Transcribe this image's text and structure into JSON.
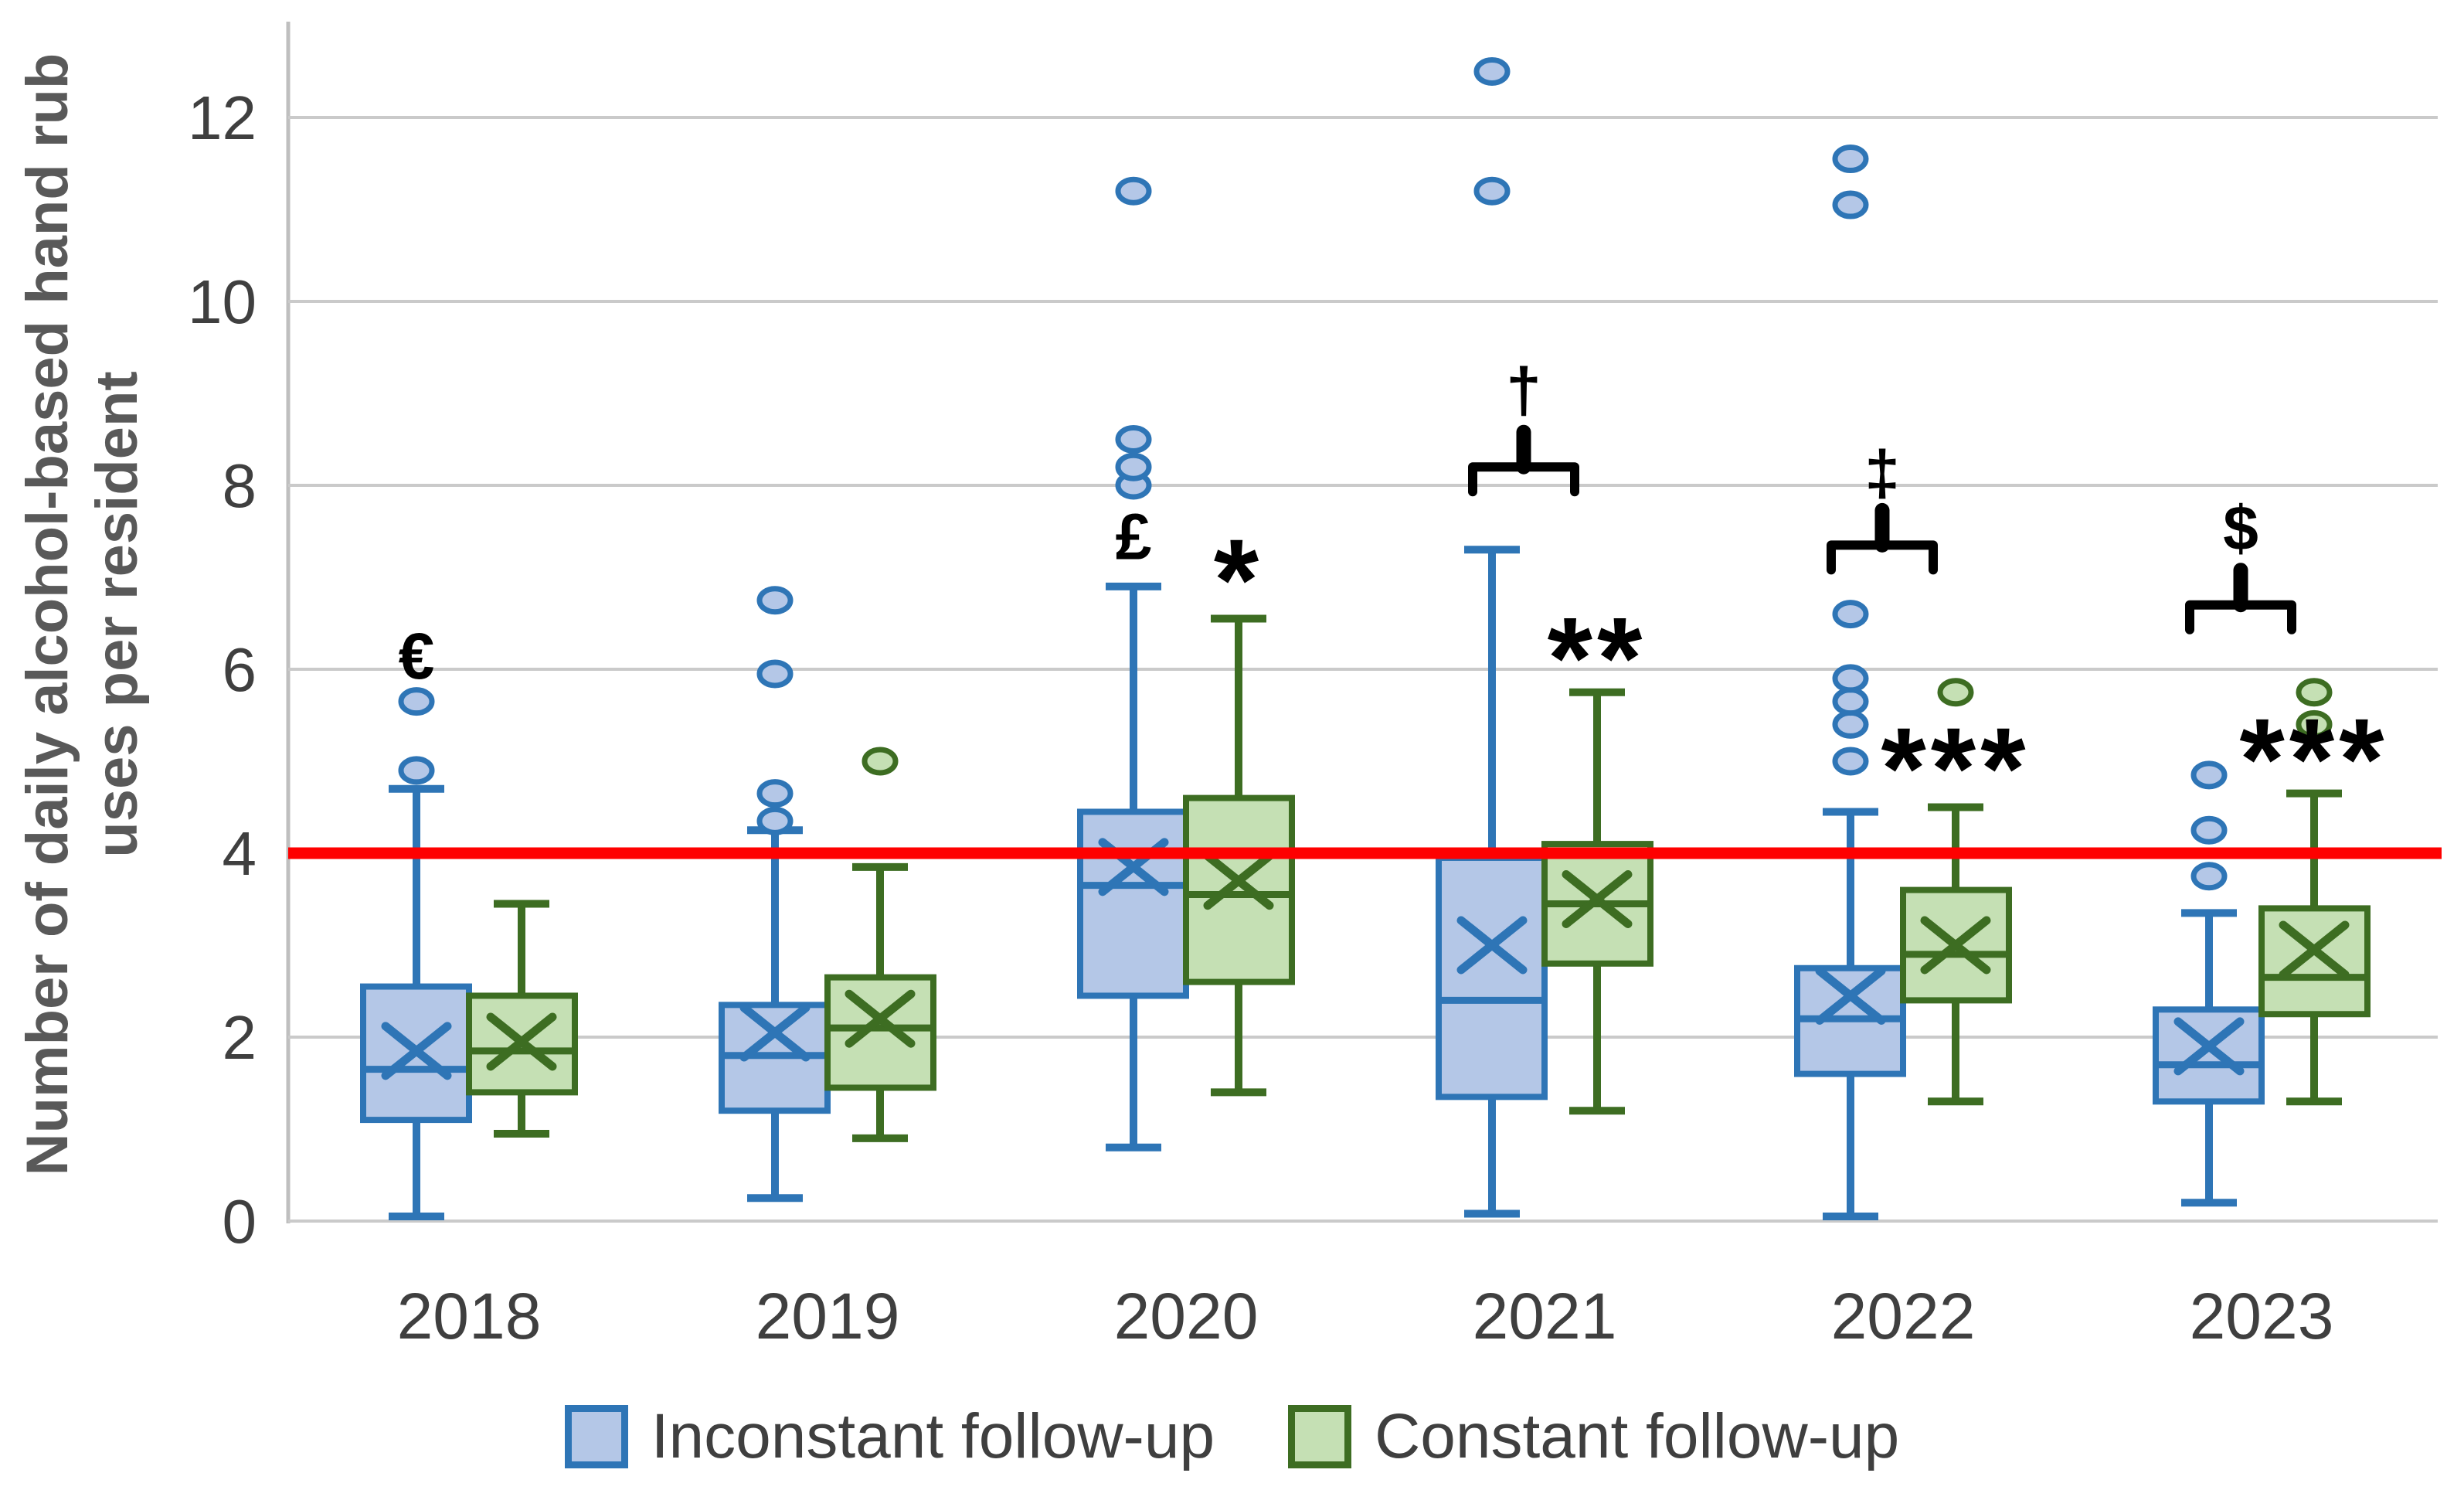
{
  "chart_data": {
    "type": "boxplot",
    "title": "",
    "ylabel_lines": [
      "Number of daily alcohol-based hand rub",
      "uses per resident"
    ],
    "xlabel": "",
    "y_axis": {
      "min": 0,
      "max": 13,
      "ticks": [
        0,
        2,
        4,
        6,
        8,
        10,
        12
      ],
      "grid": true
    },
    "reference_line": {
      "value": 4,
      "color": "#fe0000"
    },
    "categories": [
      "2018",
      "2019",
      "2020",
      "2021",
      "2022",
      "2023"
    ],
    "legend_position": "bottom",
    "style": {
      "grid_color": "#cacaca",
      "axis_color": "#bfbfbf",
      "tick_label_color": "#3f3f3f",
      "axis_title_color": "#595959",
      "annotation_color": "#000000"
    },
    "series": [
      {
        "name": "Inconstant follow-up",
        "fill": "#b4c7e7",
        "stroke": "#2e75b6",
        "boxes": [
          {
            "category": "2018",
            "whisker_low": 0.05,
            "q1": 1.1,
            "median": 1.65,
            "mean": 1.85,
            "q3": 2.55,
            "whisker_high": 4.7,
            "outliers": [
              4.9,
              5.65
            ],
            "annotation": "€",
            "annotation_y": 6.15
          },
          {
            "category": "2019",
            "whisker_low": 0.25,
            "q1": 1.2,
            "median": 1.8,
            "mean": 2.05,
            "q3": 2.35,
            "whisker_high": 4.25,
            "outliers": [
              4.35,
              4.65,
              5.95,
              6.75
            ],
            "annotation": null,
            "annotation_y": null
          },
          {
            "category": "2020",
            "whisker_low": 0.8,
            "q1": 2.45,
            "median": 3.65,
            "mean": 3.85,
            "q3": 4.45,
            "whisker_high": 6.9,
            "outliers": [
              8.0,
              8.2,
              8.5,
              11.2
            ],
            "annotation": "£",
            "annotation_y": 7.45
          },
          {
            "category": "2021",
            "whisker_low": 0.08,
            "q1": 1.35,
            "median": 2.4,
            "mean": 3.0,
            "q3": 3.95,
            "whisker_high": 7.3,
            "outliers": [
              11.2,
              12.5
            ],
            "annotation": null,
            "annotation_y": null
          },
          {
            "category": "2022",
            "whisker_low": 0.05,
            "q1": 1.6,
            "median": 2.2,
            "mean": 2.45,
            "q3": 2.75,
            "whisker_high": 4.45,
            "outliers": [
              5.0,
              5.4,
              5.65,
              5.9,
              6.6,
              11.05,
              11.55
            ],
            "annotation": null,
            "annotation_y": null
          },
          {
            "category": "2023",
            "whisker_low": 0.2,
            "q1": 1.3,
            "median": 1.7,
            "mean": 1.9,
            "q3": 2.3,
            "whisker_high": 3.35,
            "outliers": [
              3.75,
              4.25,
              4.85
            ],
            "annotation": null,
            "annotation_y": null
          }
        ]
      },
      {
        "name": "Constant follow-up",
        "fill": "#c5e0b4",
        "stroke": "#3d6d22",
        "boxes": [
          {
            "category": "2018",
            "whisker_low": 0.95,
            "q1": 1.4,
            "median": 1.85,
            "mean": 1.95,
            "q3": 2.45,
            "whisker_high": 3.45,
            "outliers": [],
            "annotation": null,
            "annotation_y": null
          },
          {
            "category": "2019",
            "whisker_low": 0.9,
            "q1": 1.45,
            "median": 2.1,
            "mean": 2.2,
            "q3": 2.65,
            "whisker_high": 3.85,
            "outliers": [
              5.0
            ],
            "annotation": null,
            "annotation_y": null
          },
          {
            "category": "2020",
            "whisker_low": 1.4,
            "q1": 2.6,
            "median": 3.55,
            "mean": 3.7,
            "q3": 4.6,
            "whisker_high": 6.55,
            "outliers": [],
            "annotation": "*",
            "annotation_y": 7.0
          },
          {
            "category": "2021",
            "whisker_low": 1.2,
            "q1": 2.8,
            "median": 3.45,
            "mean": 3.5,
            "q3": 4.1,
            "whisker_high": 5.75,
            "outliers": [],
            "annotation": "**",
            "annotation_y": 6.15
          },
          {
            "category": "2022",
            "whisker_low": 1.3,
            "q1": 2.4,
            "median": 2.9,
            "mean": 3.0,
            "q3": 3.6,
            "whisker_high": 4.5,
            "outliers": [
              5.75
            ],
            "annotation": "***",
            "annotation_y": 4.95
          },
          {
            "category": "2023",
            "whisker_low": 1.3,
            "q1": 2.25,
            "median": 2.65,
            "mean": 2.95,
            "q3": 3.4,
            "whisker_high": 4.65,
            "outliers": [
              5.4,
              5.75
            ],
            "annotation": "***",
            "annotation_y": 5.05
          }
        ]
      }
    ],
    "comparison_brackets": [
      {
        "category": "2021",
        "symbol": "†",
        "bracket_y": 8.2,
        "symbol_y": 9.05
      },
      {
        "category": "2022",
        "symbol": "‡",
        "bracket_y": 7.35,
        "symbol_y": 8.15
      },
      {
        "category": "2023",
        "symbol": "$",
        "bracket_y": 6.7,
        "symbol_y": 7.55
      }
    ]
  },
  "legend": {
    "items": [
      {
        "label": "Inconstant follow-up",
        "fill": "#b4c7e7",
        "stroke": "#2e75b6"
      },
      {
        "label": "Constant follow-up",
        "fill": "#c5e0b4",
        "stroke": "#3d6d22"
      }
    ]
  }
}
